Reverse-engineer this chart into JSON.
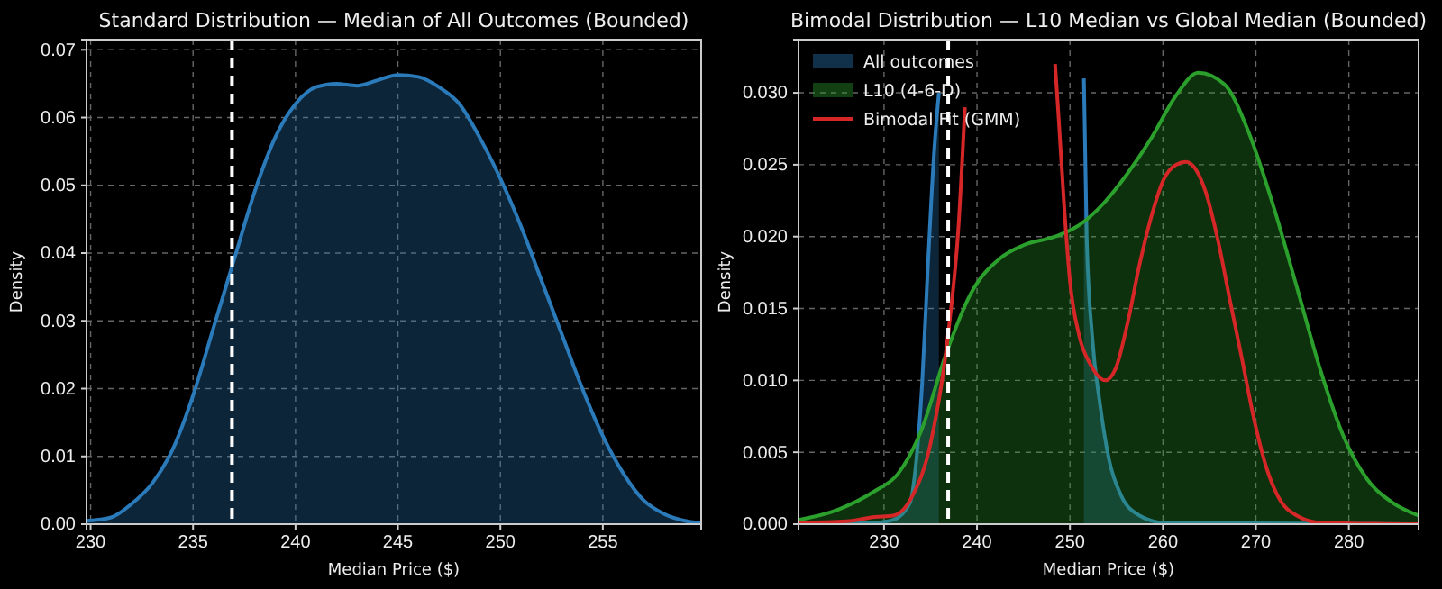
{
  "chart_data": [
    {
      "type": "area",
      "title": "Standard Distribution — Median of All Outcomes (Bounded)",
      "xlabel": "Median Price ($)",
      "ylabel": "Density",
      "xlim": [
        229.8,
        259.8
      ],
      "xticks": [
        230,
        235,
        240,
        245,
        250,
        255
      ],
      "ylim": [
        0,
        0.0715
      ],
      "yticks": [
        {
          "value": 0,
          "label": "0.00"
        },
        {
          "value": 0.01,
          "label": "0.01"
        },
        {
          "value": 0.02,
          "label": "0.02"
        },
        {
          "value": 0.03,
          "label": "0.03"
        },
        {
          "value": 0.04,
          "label": "0.04"
        },
        {
          "value": 0.05,
          "label": "0.05"
        },
        {
          "value": 0.06,
          "label": "0.06"
        },
        {
          "value": 0.07,
          "label": "0.07"
        }
      ],
      "grid": true,
      "legend": false,
      "ref_lines": [
        {
          "axis": "x",
          "value": 236.9,
          "color": "#ffffff",
          "line_style": "dashed"
        }
      ],
      "series": [
        {
          "color": "#2b7bba",
          "x": [
            229.8,
            231,
            232,
            233,
            234,
            235,
            236,
            237,
            238,
            239,
            240,
            241,
            242,
            243,
            244,
            245,
            246,
            247,
            248,
            249,
            250,
            251,
            252,
            253,
            254,
            255,
            256,
            257,
            258,
            259,
            259.8
          ],
          "values": [
            0.0005,
            0.001,
            0.003,
            0.006,
            0.011,
            0.019,
            0.029,
            0.039,
            0.049,
            0.057,
            0.062,
            0.0645,
            0.065,
            0.0647,
            0.0655,
            0.0663,
            0.066,
            0.0645,
            0.062,
            0.057,
            0.051,
            0.044,
            0.036,
            0.028,
            0.02,
            0.013,
            0.0075,
            0.0035,
            0.0015,
            0.0005,
            0.0002
          ]
        }
      ]
    },
    {
      "type": "area",
      "title": "Bimodal Distribution — L10 Median vs Global Median (Bounded)",
      "xlabel": "Median Price ($)",
      "ylabel": "Density",
      "xlim": [
        220.8,
        287.5
      ],
      "xticks": [
        230,
        240,
        250,
        260,
        270,
        280
      ],
      "ylim": [
        0,
        0.0337
      ],
      "yticks": [
        {
          "value": 0,
          "label": "0.000"
        },
        {
          "value": 0.005,
          "label": "0.005"
        },
        {
          "value": 0.01,
          "label": "0.010"
        },
        {
          "value": 0.015,
          "label": "0.015"
        },
        {
          "value": 0.02,
          "label": "0.020"
        },
        {
          "value": 0.025,
          "label": "0.025"
        },
        {
          "value": 0.03,
          "label": "0.030"
        }
      ],
      "grid": true,
      "legend": "top left",
      "ref_lines": [
        {
          "axis": "x",
          "value": 236.9,
          "color": "#ffffff",
          "line_style": "dashed"
        }
      ],
      "series": [
        {
          "name": "All outcomes",
          "color": "#2b7bba",
          "x": [
            220.8,
            229,
            231,
            232.8,
            233.4,
            234.1,
            234.7,
            235.4,
            235.9,
            244,
            251.5,
            251.8,
            252.4,
            253.2,
            254.2,
            255.5,
            257.5,
            260.1,
            287.5
          ],
          "values": [
            0,
            0.0001,
            0.0003,
            0.0015,
            0.004,
            0.0098,
            0.0177,
            0.026,
            0.03,
            null,
            0.031,
            0.02,
            0.013,
            0.0085,
            0.0045,
            0.002,
            0.0006,
            0.0001,
            0
          ]
        },
        {
          "name": "L10 (4-6-D)",
          "color": "#2ca02c",
          "x": [
            220.8,
            225,
            229,
            231.5,
            234,
            236.7,
            239.3,
            242.5,
            245,
            248.4,
            251,
            253.6,
            256.2,
            258.8,
            261.4,
            263.8,
            266.6,
            269.2,
            271.8,
            274.4,
            277,
            279.5,
            282,
            284.7,
            287.5
          ],
          "values": [
            0.0003,
            0.001,
            0.0023,
            0.0035,
            0.0065,
            0.0119,
            0.016,
            0.0185,
            0.0194,
            0.02,
            0.0208,
            0.0223,
            0.0244,
            0.0269,
            0.0298,
            0.0314,
            0.0306,
            0.0273,
            0.0223,
            0.0165,
            0.0106,
            0.006,
            0.0031,
            0.0015,
            0.0006
          ]
        },
        {
          "name": "Bimodal Fit (GMM)",
          "type": "line",
          "color": "#d62728",
          "x": [
            220.8,
            226,
            229,
            231,
            233,
            235,
            237,
            238,
            238.7,
            244,
            248.4,
            248.8,
            249.4,
            250,
            251,
            252.3,
            253.8,
            254.9,
            256.2,
            257.5,
            258.8,
            260.1,
            261.4,
            262.5,
            263.6,
            264.6,
            265.9,
            267.2,
            268.5,
            269.8,
            271.1,
            272.4,
            274.4,
            277,
            287.5
          ],
          "values": [
            0.0001,
            0.0002,
            0.0005,
            0.0006,
            0.0019,
            0.0056,
            0.0138,
            0.0206,
            0.029,
            null,
            0.032,
            0.0281,
            0.0219,
            0.0169,
            0.0131,
            0.011,
            0.01,
            0.0108,
            0.014,
            0.0181,
            0.0215,
            0.024,
            0.025,
            0.0252,
            0.0246,
            0.0231,
            0.0198,
            0.0156,
            0.0115,
            0.0073,
            0.004,
            0.0019,
            0.0006,
            0.0001,
            0
          ]
        }
      ]
    }
  ]
}
